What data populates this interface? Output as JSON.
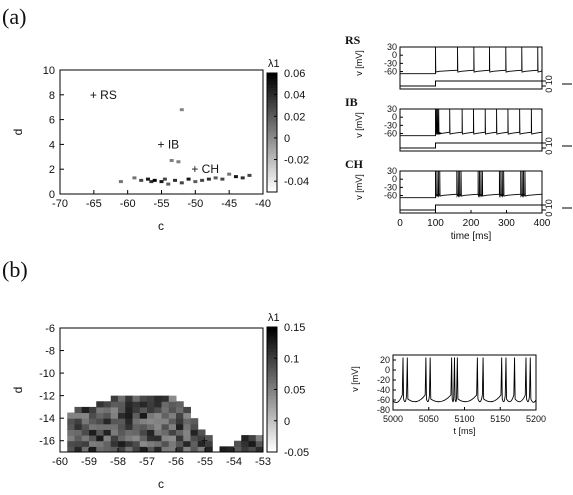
{
  "panel_labels": {
    "a": "(a)",
    "b": "(b)"
  },
  "chart_data": [
    {
      "type": "heatmap",
      "panel": "(a)",
      "xlabel": "c",
      "ylabel": "d",
      "xlim": [
        -70,
        -40
      ],
      "ylim": [
        0,
        10
      ],
      "xticks": [
        "-70",
        "-65",
        "-60",
        "-55",
        "-50",
        "-45",
        "-40"
      ],
      "yticks": [
        "0",
        "2",
        "4",
        "6",
        "8",
        "10"
      ],
      "colorbar": {
        "label": "λ1",
        "range": [
          -0.05,
          0.06
        ],
        "ticks": [
          "0.06",
          "0.04",
          "0.02",
          "0",
          "-0.02",
          "-0.04"
        ],
        "colormap": "white-to-black"
      },
      "annotations": [
        {
          "text": "+ RS",
          "c": -65,
          "d": 8
        },
        {
          "text": "+ IB",
          "c": -55,
          "d": 4
        },
        {
          "text": "+ CH",
          "c": -50,
          "d": 2
        }
      ],
      "points": [
        {
          "c": -58,
          "d": 1.1,
          "v": 0.03
        },
        {
          "c": -57,
          "d": 1.2,
          "v": 0.05
        },
        {
          "c": -56.5,
          "d": 1.0,
          "v": 0.04
        },
        {
          "c": -56,
          "d": 1.1,
          "v": 0.06
        },
        {
          "c": -55,
          "d": 1.0,
          "v": 0.05
        },
        {
          "c": -54.5,
          "d": 1.2,
          "v": 0.03
        },
        {
          "c": -54,
          "d": 0.8,
          "v": 0.02
        },
        {
          "c": -53,
          "d": 1.1,
          "v": 0.04
        },
        {
          "c": -52,
          "d": 0.9,
          "v": 0.03
        },
        {
          "c": -51,
          "d": 1.2,
          "v": 0.05
        },
        {
          "c": -50,
          "d": 1.0,
          "v": 0.02
        },
        {
          "c": -49,
          "d": 1.1,
          "v": 0.03
        },
        {
          "c": -48,
          "d": 1.2,
          "v": 0.04
        },
        {
          "c": -47,
          "d": 1.3,
          "v": 0.02
        },
        {
          "c": -46,
          "d": 1.2,
          "v": 0.03
        },
        {
          "c": -44,
          "d": 1.4,
          "v": 0.05
        },
        {
          "c": -43,
          "d": 1.3,
          "v": 0.04
        },
        {
          "c": -42,
          "d": 1.5,
          "v": 0.03
        },
        {
          "c": -59,
          "d": 1.3,
          "v": 0.01
        },
        {
          "c": -52.5,
          "d": 2.6,
          "v": 0.005
        },
        {
          "c": -53.5,
          "d": 2.7,
          "v": 0.005
        },
        {
          "c": -52,
          "d": 6.8,
          "v": 0.002
        },
        {
          "c": -61,
          "d": 1.0,
          "v": 0.01
        },
        {
          "c": -45,
          "d": 1.6,
          "v": 0.01
        }
      ]
    },
    {
      "type": "line",
      "panel": "(a)",
      "traces": [
        {
          "name": "RS",
          "spikes": [
            100,
            162,
            208,
            252,
            298,
            343,
            388
          ],
          "burst": 1
        },
        {
          "name": "IB",
          "spikes": [
            100,
            103,
            106,
            109,
            140,
            175,
            207,
            240,
            272,
            304,
            337,
            370
          ],
          "burst": 1
        },
        {
          "name": "CH",
          "spikes": [
            100,
            160,
            220,
            280,
            340
          ],
          "burst": 4
        }
      ],
      "vlabel": "v [mV]",
      "vticks": [
        "30",
        "0",
        "-30",
        "-60"
      ],
      "vlim": [
        -80,
        30
      ],
      "current_ticks": [
        "0",
        "10"
      ],
      "current_on": 100,
      "xlabel": "time [ms]",
      "xlim": [
        0,
        400
      ],
      "xticks": [
        "0",
        "100",
        "200",
        "300",
        "400"
      ]
    },
    {
      "type": "heatmap",
      "panel": "(b)",
      "xlabel": "c",
      "ylabel": "d",
      "xlim": [
        -60,
        -53
      ],
      "ylim": [
        -17,
        -6
      ],
      "xticks": [
        "-60",
        "-59",
        "-58",
        "-57",
        "-56",
        "-55",
        "-54",
        "-53"
      ],
      "yticks": [
        "-6",
        "-8",
        "-10",
        "-12",
        "-14",
        "-16"
      ],
      "colorbar": {
        "label": "λ1",
        "range": [
          -0.05,
          0.15
        ],
        "ticks": [
          "0.15",
          "0.1",
          "0.05",
          "0",
          "-0.05"
        ],
        "colormap": "white-to-black"
      },
      "annotations": [
        {
          "text": "+",
          "c": -55,
          "d": -16
        }
      ],
      "region": {
        "c_grid_step": 0.25,
        "d_grid_step": 0.5,
        "left_edge_c": -59.75,
        "upper_boundary": [
          [
            -59.75,
            -13.5
          ],
          [
            -59,
            -13.2
          ],
          [
            -58.5,
            -12.6
          ],
          [
            -58,
            -12.2
          ],
          [
            -57,
            -12.0
          ],
          [
            -56.2,
            -12.0
          ],
          [
            -55.9,
            -13.0
          ],
          [
            -55.5,
            -14.2
          ],
          [
            -55.1,
            -15.5
          ],
          [
            -54.8,
            -16.5
          ]
        ],
        "right_lobe": [
          [
            -54.6,
            -17.0
          ],
          [
            -54.3,
            -16.6
          ],
          [
            -53.9,
            -16.0
          ],
          [
            -53.5,
            -15.5
          ],
          [
            -53.2,
            -15.6
          ],
          [
            -53.0,
            -16.0
          ]
        ],
        "value_range": [
          0.0,
          0.06
        ]
      }
    },
    {
      "type": "line",
      "panel": "(b)",
      "vlabel": "v [mV]",
      "vticks": [
        "20",
        "0",
        "-20",
        "-40",
        "-60",
        "-80"
      ],
      "vlim": [
        -80,
        30
      ],
      "xlabel": "t [ms]",
      "xlim": [
        5000,
        5200
      ],
      "xticks": [
        "5000",
        "5050",
        "5100",
        "5150",
        "5200"
      ],
      "spikes": [
        5014,
        5020,
        5046,
        5052,
        5082,
        5086,
        5090,
        5118,
        5126,
        5152,
        5158,
        5170,
        5186,
        5192
      ]
    }
  ]
}
